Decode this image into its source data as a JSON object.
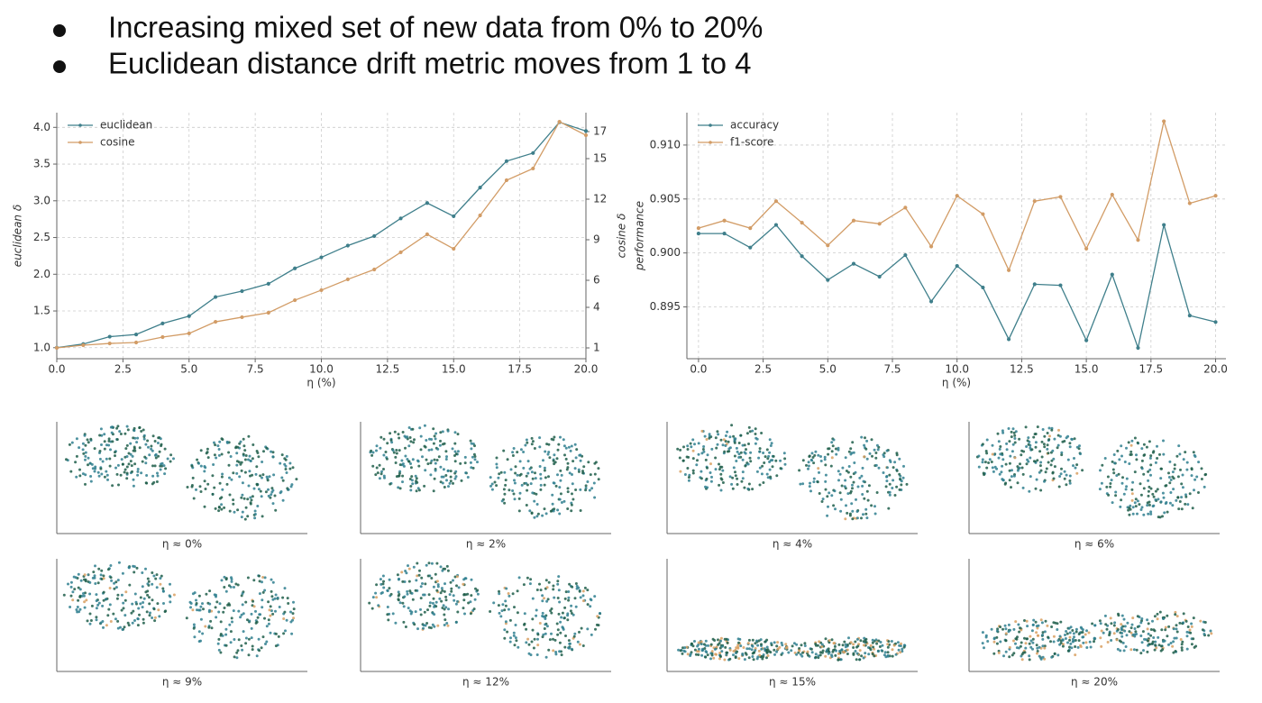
{
  "bullets": [
    "Increasing mixed set of new data from 0% to 20%",
    "Euclidean distance drift metric moves from 1 to 4"
  ],
  "chart_data": [
    {
      "type": "line",
      "xlabel": "η (%)",
      "ylabel": "euclidean δ",
      "y2label": "cosine δ",
      "x": [
        0,
        1,
        2,
        3,
        4,
        5,
        6,
        7,
        8,
        9,
        10,
        11,
        12,
        13,
        14,
        15,
        16,
        17,
        18,
        19,
        20
      ],
      "xlim": [
        0,
        20
      ],
      "xticks": [
        {
          "value": 0,
          "label": "0.0"
        },
        2.5,
        {
          "value": 5,
          "label": "5.0"
        },
        7.5,
        {
          "value": 10,
          "label": "10.0"
        },
        12.5,
        {
          "value": 15,
          "label": "15.0"
        },
        17.5,
        {
          "value": 20,
          "label": "20.0"
        }
      ],
      "ylim": [
        0.85,
        4.2
      ],
      "yticks": [
        {
          "value": 1,
          "label": "1.0"
        },
        1.5,
        {
          "value": 2,
          "label": "2.0"
        },
        2.5,
        {
          "value": 3,
          "label": "3.0"
        },
        3.5,
        {
          "value": 4,
          "label": "4.0"
        }
      ],
      "y2lim": [
        0.2,
        18.4
      ],
      "y2ticks": [
        1,
        4,
        6,
        9,
        12,
        15,
        17
      ],
      "grid": true,
      "legend": "upper-left",
      "series": [
        {
          "name": "euclidean",
          "color": "#3f7f8b",
          "values": [
            1.0,
            1.05,
            1.15,
            1.18,
            1.33,
            1.43,
            1.69,
            1.77,
            1.87,
            2.08,
            2.23,
            2.39,
            2.52,
            2.76,
            2.97,
            2.79,
            3.18,
            3.54,
            3.65,
            4.07,
            3.95
          ]
        },
        {
          "name": "cosine",
          "color": "#d29c66",
          "axis": "y2",
          "values": [
            1.0,
            1.2,
            1.33,
            1.4,
            1.8,
            2.07,
            2.93,
            3.27,
            3.6,
            4.53,
            5.27,
            6.07,
            6.8,
            8.07,
            9.4,
            8.33,
            10.8,
            13.4,
            14.27,
            17.73,
            16.73
          ]
        }
      ]
    },
    {
      "type": "line",
      "xlabel": "η (%)",
      "ylabel": "performance",
      "x": [
        0,
        1,
        2,
        3,
        4,
        5,
        6,
        7,
        8,
        9,
        10,
        11,
        12,
        13,
        14,
        15,
        16,
        17,
        18,
        19,
        20
      ],
      "xlim": [
        -0.45,
        20.4
      ],
      "xticks": [
        {
          "value": 0,
          "label": "0.0"
        },
        2.5,
        {
          "value": 5,
          "label": "5.0"
        },
        7.5,
        {
          "value": 10,
          "label": "10.0"
        },
        12.5,
        {
          "value": 15,
          "label": "15.0"
        },
        17.5,
        {
          "value": 20,
          "label": "20.0"
        }
      ],
      "ylim": [
        0.8902,
        0.913
      ],
      "yticks": [
        0.895,
        {
          "value": 0.9,
          "label": "0.900"
        },
        0.905,
        {
          "value": 0.91,
          "label": "0.910"
        }
      ],
      "grid": true,
      "legend": "upper-left",
      "series": [
        {
          "name": "accuracy",
          "color": "#3f7f8b",
          "values": [
            0.9018,
            0.9018,
            0.9005,
            0.9026,
            0.8997,
            0.8975,
            0.899,
            0.8978,
            0.8998,
            0.8955,
            0.8988,
            0.8968,
            0.892,
            0.8971,
            0.897,
            0.8919,
            0.898,
            0.8912,
            0.9026,
            0.8942,
            0.8936
          ]
        },
        {
          "name": "f1-score",
          "color": "#d29c66",
          "values": [
            0.9023,
            0.903,
            0.9023,
            0.9048,
            0.9028,
            0.9007,
            0.903,
            0.9027,
            0.9042,
            0.9006,
            0.9053,
            0.9036,
            0.8984,
            0.9048,
            0.9052,
            0.9004,
            0.9054,
            0.9012,
            0.9122,
            0.9046,
            0.9053
          ]
        }
      ]
    }
  ],
  "panels": [
    {
      "caption": "η ≈ 0%"
    },
    {
      "caption": "η ≈ 2%"
    },
    {
      "caption": "η ≈ 4%"
    },
    {
      "caption": "η ≈ 6%"
    },
    {
      "caption": "η ≈ 9%"
    },
    {
      "caption": "η ≈ 12%"
    },
    {
      "caption": "η ≈ 15%"
    },
    {
      "caption": "η ≈ 20%"
    }
  ]
}
